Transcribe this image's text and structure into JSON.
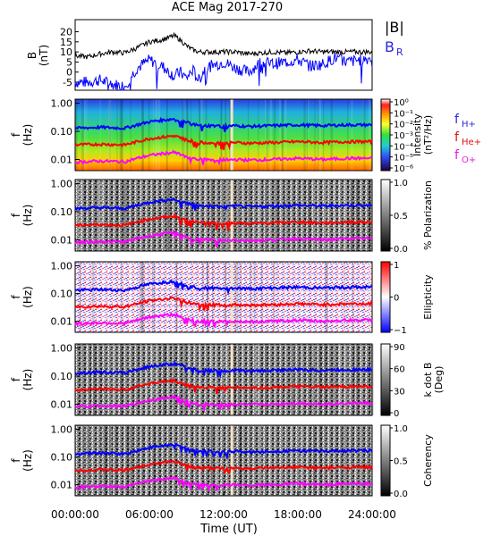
{
  "title": "ACE Mag 2017-270",
  "xlabel": "Time (UT)",
  "x_ticks": [
    "00:00:00",
    "06:00:00",
    "12:00:00",
    "18:00:00",
    "24:00:00"
  ],
  "x_tick_hours": [
    0,
    6,
    12,
    18,
    24
  ],
  "legend_top": {
    "b_total": "|B|",
    "b_r": "B",
    "b_r_sub": "R"
  },
  "legend_freq": [
    {
      "label": "f",
      "sub": "H+",
      "color": "#2a2ad8"
    },
    {
      "label": "f",
      "sub": "He+",
      "color": "#e01010"
    },
    {
      "label": "f",
      "sub": "O+",
      "color": "#e020e0"
    }
  ],
  "colors": {
    "b_total": "#000000",
    "b_r": "#0000ff",
    "f_h": "#0000ff",
    "f_he": "#ff0000",
    "f_o": "#ff00ff"
  },
  "chart_data": [
    {
      "type": "line",
      "name": "magnetic-field",
      "ylabel": "B",
      "yunit": "(nT)",
      "y_ticks": [
        "20",
        "15",
        "10",
        "5",
        "0",
        "-5"
      ],
      "ylim": [
        -9,
        26
      ],
      "x": [
        0,
        1,
        2,
        3,
        4,
        5,
        6,
        7,
        8,
        8.5,
        9,
        9.5,
        10,
        10.5,
        11,
        12,
        13,
        14,
        15,
        16,
        17,
        18,
        19,
        20,
        21,
        22,
        23,
        24
      ],
      "series": [
        {
          "name": "|B|",
          "values": [
            8,
            7.5,
            9,
            10,
            9.5,
            12,
            15,
            16,
            18,
            16,
            13,
            11,
            10,
            10,
            10,
            10,
            10,
            9,
            9.5,
            10,
            9.5,
            10,
            10.5,
            10,
            10,
            10,
            10,
            10
          ]
        },
        {
          "name": "B_R",
          "values": [
            -5,
            -5,
            -4,
            -6,
            -7,
            2,
            6,
            3,
            -2,
            0,
            -3,
            1,
            -4,
            2,
            3,
            5,
            2,
            0,
            5,
            4,
            5,
            6,
            3,
            4,
            7,
            5,
            6,
            7
          ]
        }
      ]
    },
    {
      "type": "heatmap",
      "name": "intensity",
      "ylabel": "f",
      "yunit": "(Hz)",
      "y_ticks": [
        "1.00",
        "0.10",
        "0.01"
      ],
      "colorbar_label": "Intensity",
      "colorbar_unit": "(nT²/Hz)",
      "colorbar_ticks": [
        "10⁰",
        "10⁻¹",
        "10⁻²",
        "10⁻³",
        "10⁻⁴",
        "10⁻⁵",
        "10⁻⁶"
      ]
    },
    {
      "type": "heatmap",
      "name": "polarization",
      "ylabel": "f",
      "yunit": "(Hz)",
      "y_ticks": [
        "1.00",
        "0.10",
        "0.01"
      ],
      "colorbar_label": "% Polarization",
      "colorbar_ticks": [
        "1.0",
        "0.5",
        "0.0"
      ]
    },
    {
      "type": "heatmap",
      "name": "ellipticity",
      "ylabel": "f",
      "yunit": "(Hz)",
      "y_ticks": [
        "1.00",
        "0.10",
        "0.01"
      ],
      "colorbar_label": "Ellipticity",
      "colorbar_ticks": [
        "1",
        "0",
        "−1"
      ]
    },
    {
      "type": "heatmap",
      "name": "k-dot-b",
      "ylabel": "f",
      "yunit": "(Hz)",
      "y_ticks": [
        "1.00",
        "0.10",
        "0.01"
      ],
      "colorbar_label": "k dot B",
      "colorbar_unit": "(Deg)",
      "colorbar_ticks": [
        "90",
        "60",
        "30",
        "0"
      ]
    },
    {
      "type": "heatmap",
      "name": "coherency",
      "ylabel": "f",
      "yunit": "(Hz)",
      "y_ticks": [
        "1.00",
        "0.10",
        "0.01"
      ],
      "colorbar_label": "Coherency",
      "colorbar_ticks": [
        "1.0",
        "0.5",
        "0.0"
      ]
    }
  ],
  "gyrofrequency_lines": {
    "hours": [
      0,
      2,
      4,
      5,
      6,
      7,
      8,
      9,
      10,
      11,
      12,
      13,
      14,
      16,
      18,
      20,
      22,
      24
    ],
    "f_hplus": [
      0.13,
      0.14,
      0.13,
      0.17,
      0.22,
      0.25,
      0.28,
      0.2,
      0.16,
      0.16,
      0.15,
      0.16,
      0.15,
      0.16,
      0.17,
      0.16,
      0.17,
      0.17
    ],
    "f_heplus": [
      0.033,
      0.035,
      0.033,
      0.043,
      0.055,
      0.062,
      0.07,
      0.05,
      0.04,
      0.04,
      0.038,
      0.04,
      0.038,
      0.04,
      0.043,
      0.04,
      0.043,
      0.043
    ],
    "f_oplus": [
      0.008,
      0.0088,
      0.0083,
      0.011,
      0.014,
      0.016,
      0.018,
      0.012,
      0.01,
      0.01,
      0.0095,
      0.01,
      0.0095,
      0.01,
      0.011,
      0.01,
      0.011,
      0.011
    ]
  }
}
